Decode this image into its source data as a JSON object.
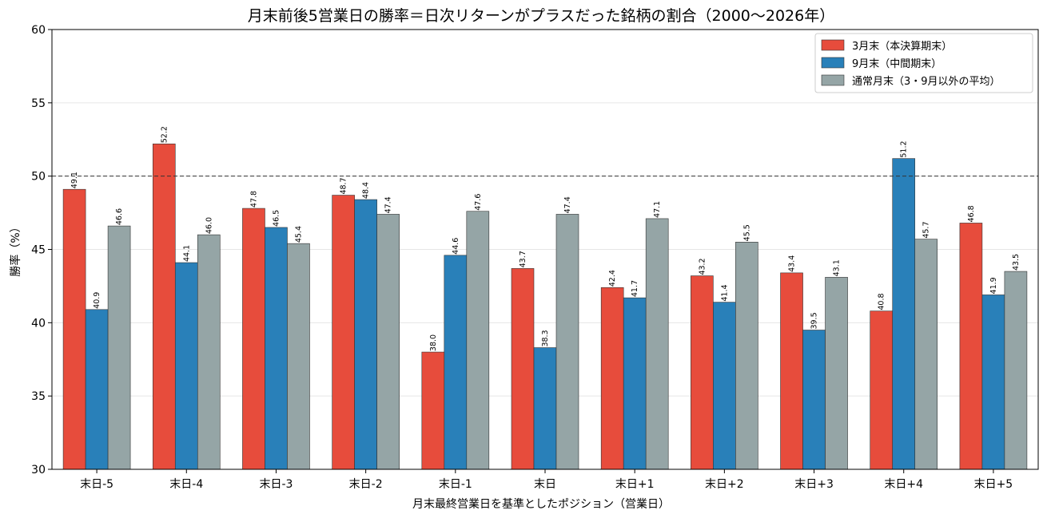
{
  "chart_data": {
    "type": "bar",
    "title": "月末前後5営業日の勝率＝日次リターンがプラスだった銘柄の割合（2000〜2026年）",
    "xlabel": "月末最終営業日を基準としたポジション（営業日）",
    "ylabel": "勝率（%）",
    "ylim": [
      30,
      60
    ],
    "yticks": [
      "30",
      "35",
      "40",
      "45",
      "50",
      "55",
      "60"
    ],
    "reference_line": 50,
    "grid": "horizontal",
    "legend_position": "top-right",
    "categories": [
      "末日-5",
      "末日-4",
      "末日-3",
      "末日-2",
      "末日-1",
      "末日",
      "末日+1",
      "末日+2",
      "末日+3",
      "末日+4",
      "末日+5"
    ],
    "series": [
      {
        "name": "3月末（本決算期末）",
        "color": "#e74c3c",
        "values": [
          49.1,
          52.2,
          47.8,
          48.7,
          38.0,
          43.7,
          42.4,
          43.2,
          43.4,
          40.8,
          46.8
        ],
        "labels": [
          "49.1",
          "52.2",
          "47.8",
          "48.7",
          "38.0",
          "43.7",
          "42.4",
          "43.2",
          "43.4",
          "40.8",
          "46.8"
        ]
      },
      {
        "name": "9月末（中間期末）",
        "color": "#2980b9",
        "values": [
          40.9,
          44.1,
          46.5,
          48.4,
          44.6,
          38.3,
          41.7,
          41.4,
          39.5,
          51.2,
          41.9
        ],
        "labels": [
          "40.9",
          "44.1",
          "46.5",
          "48.4",
          "44.6",
          "38.3",
          "41.7",
          "41.4",
          "39.5",
          "51.2",
          "41.9"
        ]
      },
      {
        "name": "通常月末（3・9月以外の平均）",
        "color": "#95a5a6",
        "values": [
          46.6,
          46.0,
          45.4,
          47.4,
          47.6,
          47.4,
          47.1,
          45.5,
          43.1,
          45.7,
          43.5
        ],
        "labels": [
          "46.6",
          "46.0",
          "45.4",
          "47.4",
          "47.6",
          "47.4",
          "47.1",
          "45.5",
          "43.1",
          "45.7",
          "43.5"
        ]
      }
    ]
  }
}
